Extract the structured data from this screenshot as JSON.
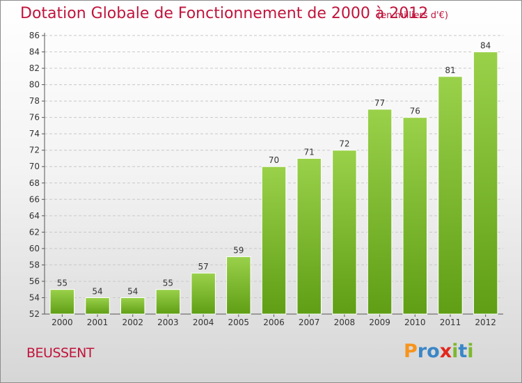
{
  "header": {
    "title": "Dotation Globale de Fonctionnement de 2000 à 2012",
    "subtitle": "(en milliers d'€)"
  },
  "commune": "BEUSSENT",
  "logo": {
    "letters": [
      "P",
      "r",
      "o",
      "x",
      "i",
      "t",
      "i"
    ],
    "colors": [
      "#f7941d",
      "#3a86c8",
      "#3a86c8",
      "#e2261c",
      "#7cb82f",
      "#3a86c8",
      "#7cb82f"
    ]
  },
  "chart_data": {
    "type": "bar",
    "title": "Dotation Globale de Fonctionnement de 2000 à 2012",
    "subtitle": "(en milliers d'€)",
    "categories": [
      "2000",
      "2001",
      "2002",
      "2003",
      "2004",
      "2005",
      "2006",
      "2007",
      "2008",
      "2009",
      "2010",
      "2011",
      "2012"
    ],
    "values": [
      55,
      54,
      54,
      55,
      57,
      59,
      70,
      71,
      72,
      77,
      76,
      81,
      84
    ],
    "ylim": [
      52,
      86
    ],
    "yticks": [
      52,
      54,
      56,
      58,
      60,
      62,
      64,
      66,
      68,
      70,
      72,
      74,
      76,
      78,
      80,
      82,
      84,
      86
    ],
    "grid": true,
    "bar_color": "#7cc033"
  }
}
